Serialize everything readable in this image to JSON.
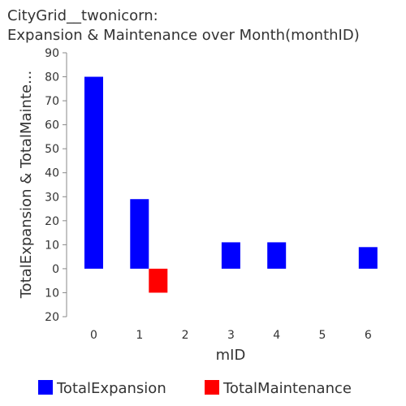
{
  "chart_data": {
    "type": "bar",
    "title": [
      "CityGrid__twonicorn:",
      "Expansion & Maintenance over Month(monthID)"
    ],
    "xlabel": "mID",
    "ylabel": "TotalExpansion & TotalMainte...",
    "categories": [
      "0",
      "1",
      "2",
      "3",
      "4",
      "5",
      "6"
    ],
    "x": [
      0,
      1,
      2,
      3,
      4,
      5,
      6
    ],
    "ylim": [
      -20,
      90
    ],
    "yticks": [
      90,
      80,
      70,
      60,
      50,
      40,
      30,
      20,
      10,
      0,
      -10,
      -20
    ],
    "ytick_labels": [
      "90",
      "80",
      "70",
      "60",
      "50",
      "40",
      "30",
      "20",
      "10",
      "0",
      "10",
      "20"
    ],
    "grid": false,
    "legend_position": "bottom",
    "series": [
      {
        "name": "TotalExpansion",
        "color": "#0000ff",
        "values": [
          80,
          29,
          null,
          11,
          11,
          null,
          9
        ]
      },
      {
        "name": "TotalMaintenance",
        "color": "#ff0000",
        "values": [
          null,
          -10,
          null,
          null,
          null,
          null,
          null
        ]
      }
    ]
  }
}
